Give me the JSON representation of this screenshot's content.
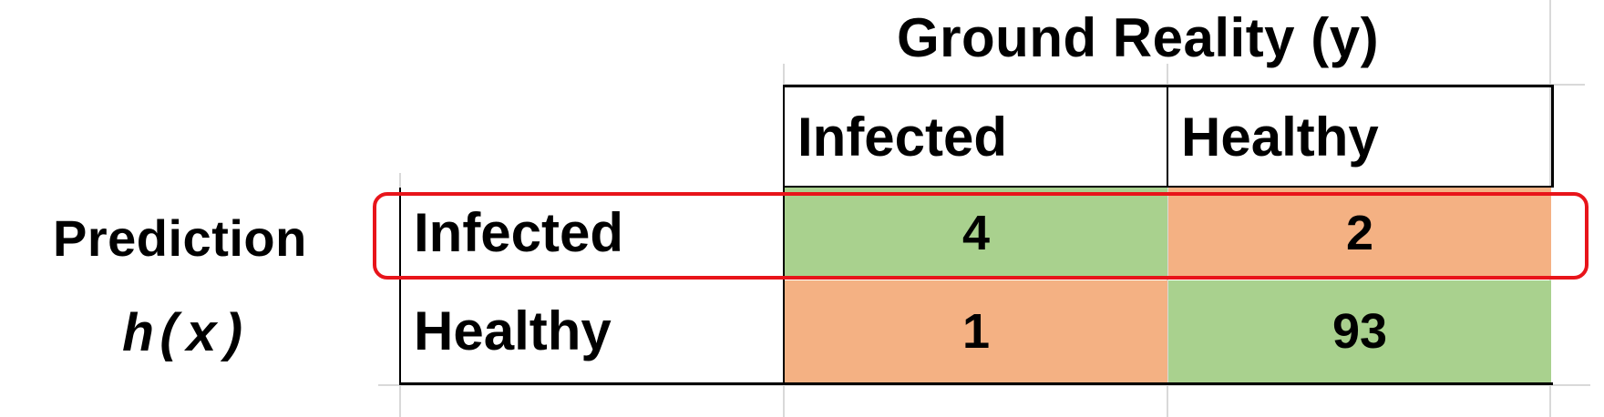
{
  "title": "Ground Reality (y)",
  "row_axis": {
    "label": "Prediction",
    "function": "h(x)"
  },
  "columns": [
    "Infected",
    "Healthy"
  ],
  "rows": [
    {
      "label": "Infected",
      "values": [
        "4",
        "2"
      ]
    },
    {
      "label": "Healthy",
      "values": [
        "1",
        "93"
      ]
    }
  ],
  "colors": {
    "correct": "#a9d18e",
    "incorrect": "#f4b183",
    "highlight": "#e8141a"
  }
}
